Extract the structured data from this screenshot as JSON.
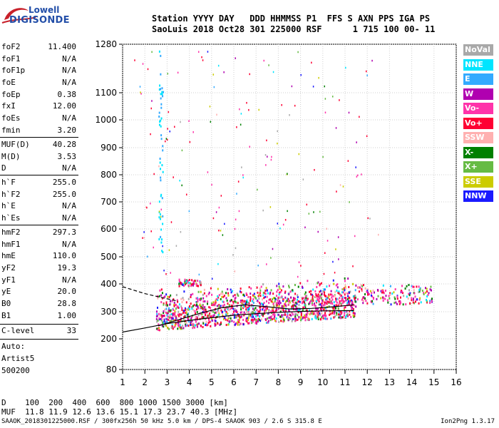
{
  "logo": {
    "line1": "Lowell",
    "line2": "DIGISONDE"
  },
  "header": {
    "line1": "Station YYYY DAY   DDD HHMMSS P1  FFS S AXN PPS IGA PS",
    "line2": "SaoLuis 2018 Oct28 301 225000 RSF      1 715 100 00- 11"
  },
  "params_group1": [
    {
      "key": "foF2",
      "val": "11.400"
    },
    {
      "key": "foF1",
      "val": "N/A"
    },
    {
      "key": "foF1p",
      "val": "N/A"
    },
    {
      "key": "foE",
      "val": "N/A"
    },
    {
      "key": "foEp",
      "val": "0.38"
    },
    {
      "key": "fxI",
      "val": "12.00"
    },
    {
      "key": "foEs",
      "val": "N/A"
    },
    {
      "key": "fmin",
      "val": "3.20"
    }
  ],
  "params_group2": [
    {
      "key": "MUF(D)",
      "val": "40.28"
    },
    {
      "key": "M(D)",
      "val": "3.53"
    },
    {
      "key": "D",
      "val": "N/A"
    }
  ],
  "params_group3": [
    {
      "key": "h`F",
      "val": "255.0"
    },
    {
      "key": "h`F2",
      "val": "255.0"
    },
    {
      "key": "h`E",
      "val": "N/A"
    },
    {
      "key": "h`Es",
      "val": "N/A"
    }
  ],
  "params_group4": [
    {
      "key": "hmF2",
      "val": "297.3"
    },
    {
      "key": "hmF1",
      "val": "N/A"
    },
    {
      "key": "hmE",
      "val": "110.0"
    },
    {
      "key": "yF2",
      "val": "19.3"
    },
    {
      "key": "yF1",
      "val": "N/A"
    },
    {
      "key": "yE",
      "val": "20.0"
    },
    {
      "key": "B0",
      "val": "28.8"
    },
    {
      "key": "B1",
      "val": "1.00"
    }
  ],
  "clevel": {
    "key": "C-level",
    "val": "33"
  },
  "auto": {
    "line1": "Auto:",
    "line2": "Artist5",
    "line3": "500200"
  },
  "legend": [
    {
      "label": "NoVal",
      "color": "#a9a9a9"
    },
    {
      "label": "NNE",
      "color": "#00e5ff"
    },
    {
      "label": "E",
      "color": "#33aaff"
    },
    {
      "label": "W",
      "color": "#b000b0"
    },
    {
      "label": "Vo-",
      "color": "#ff33aa"
    },
    {
      "label": "Vo+",
      "color": "#ff0033"
    },
    {
      "label": "SSW",
      "color": "#ffb0b0"
    },
    {
      "label": "X-",
      "color": "#008000"
    },
    {
      "label": "X+",
      "color": "#66bb44"
    },
    {
      "label": "SSE",
      "color": "#cccc00"
    },
    {
      "label": "NNW",
      "color": "#1a1aff"
    }
  ],
  "footer": {
    "line1": "D    100  200  400  600  800 1000 1500 3000 [km]",
    "line2": "MUF  11.8 11.9 12.6 13.6 15.1 17.3 23.7 40.3 [MHz]",
    "line3": "SAAOK_2018301225000.RSF / 300fx256h 50 kHz 5.0 km / DPS-4 SAAOK 903 / 2.6 S 315.8 E",
    "version": "Ion2Png 1.3.17"
  },
  "chart_data": {
    "type": "scatter",
    "xlim": [
      1,
      16
    ],
    "ylim": [
      80,
      1280
    ],
    "xticks": [
      "1",
      "2",
      "3",
      "4",
      "5",
      "6",
      "7",
      "8",
      "9",
      "10",
      "11",
      "12",
      "13",
      "14",
      "15",
      "16"
    ],
    "yticks": [
      "80",
      "200",
      "300",
      "400",
      "500",
      "600",
      "700",
      "800",
      "900",
      "1000",
      "1100",
      "1280"
    ],
    "y_scale": "nonlinear (ionogram height axis)",
    "grid": true,
    "legend_position": "right",
    "series": [
      {
        "name": "O-trace profile (lower)",
        "x": [
          1,
          2,
          3,
          4,
          5,
          6,
          7,
          8,
          9,
          10,
          11.4
        ],
        "y": [
          225,
          240,
          256,
          268,
          278,
          287,
          293,
          298,
          301,
          303,
          304
        ]
      },
      {
        "name": "O-trace profile (upper)",
        "x": [
          2.6,
          3.5,
          4.5,
          5.5,
          6.5,
          7.5,
          8.5,
          9.5,
          10.5,
          11.4
        ],
        "y": [
          248,
          270,
          295,
          315,
          325,
          318,
          310,
          312,
          318,
          325
        ]
      },
      {
        "name": "dashed extension",
        "x": [
          1,
          2,
          2.8,
          3.5
        ],
        "y": [
          390,
          365,
          350,
          338
        ]
      }
    ],
    "echo_clusters": [
      {
        "x_range": [
          2.5,
          11.5
        ],
        "y_range": [
          240,
          400
        ],
        "density": "high"
      },
      {
        "x_range": [
          11.5,
          15
        ],
        "y_range": [
          330,
          400
        ],
        "density": "medium"
      },
      {
        "x_range": [
          3.5,
          4.5
        ],
        "y_range": [
          395,
          420
        ],
        "density": "medium"
      },
      {
        "x_range": [
          2.6,
          2.8
        ],
        "y_range": [
          500,
          1280
        ],
        "density": "column"
      }
    ]
  }
}
